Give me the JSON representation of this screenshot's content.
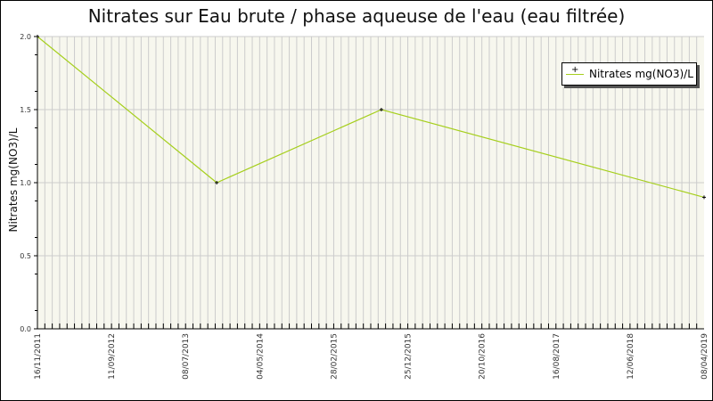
{
  "chart_data": {
    "type": "line",
    "title": "Nitrates sur Eau brute / phase aqueuse de l'eau (eau filtrée)",
    "xlabel": "",
    "ylabel": "Nitrates mg(NO3)/L",
    "ylim": [
      0.0,
      2.0
    ],
    "yticks": [
      "0.0",
      "0.5",
      "1.0",
      "1.5",
      "2.0"
    ],
    "xticks": [
      "16/11/2011",
      "11/09/2012",
      "08/07/2013",
      "04/05/2014",
      "28/02/2015",
      "25/12/2015",
      "20/10/2016",
      "16/08/2017",
      "12/06/2018",
      "08/04/2019"
    ],
    "grid": true,
    "legend_position": "top-right",
    "series": [
      {
        "name": "Nitrates mg(NO3)/L",
        "color": "#a6cf1d",
        "x": [
          "16/11/2011",
          "11/11/2013",
          "09/09/2015",
          "08/04/2019"
        ],
        "values": [
          2.0,
          1.0,
          1.5,
          0.9
        ]
      }
    ]
  },
  "colors": {
    "plot_bg": "#f7f7ee",
    "grid": "#cccccc",
    "line": "#a6cf1d"
  }
}
